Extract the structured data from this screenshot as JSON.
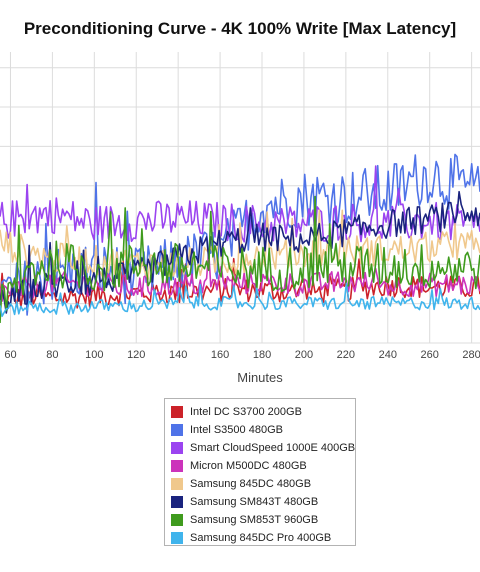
{
  "chart_data": {
    "type": "line",
    "title": "Preconditioning Curve - 4K 100% Write [Max Latency]",
    "xlabel": "Minutes",
    "ylabel": "",
    "xlim": [
      55,
      284
    ],
    "ylim": [
      0,
      11
    ],
    "x_ticks": [
      60,
      80,
      100,
      120,
      140,
      160,
      180,
      200,
      220,
      240,
      260,
      280
    ],
    "grid": true,
    "legend_position": "bottom-center",
    "series": [
      {
        "name": "Intel DC S3700 200GB",
        "color": "#cc2229",
        "points": [
          [
            55,
            1.5
          ],
          [
            70,
            1.8
          ],
          [
            80,
            1.7
          ],
          [
            100,
            1.8
          ],
          [
            120,
            1.9
          ],
          [
            140,
            1.9
          ],
          [
            160,
            2.0
          ],
          [
            180,
            2.0
          ],
          [
            200,
            1.9
          ],
          [
            220,
            2.0
          ],
          [
            240,
            2.2
          ],
          [
            260,
            2.1
          ],
          [
            280,
            2.1
          ]
        ]
      },
      {
        "name": "Intel S3500 480GB",
        "color": "#4f73e8",
        "points": [
          [
            55,
            1.8
          ],
          [
            70,
            2.2
          ],
          [
            80,
            2.6
          ],
          [
            100,
            2.8
          ],
          [
            120,
            2.5
          ],
          [
            140,
            3.0
          ],
          [
            160,
            3.4
          ],
          [
            180,
            5.2
          ],
          [
            200,
            5.5
          ],
          [
            220,
            5.5
          ],
          [
            240,
            5.7
          ],
          [
            260,
            6.4
          ],
          [
            280,
            5.8
          ]
        ]
      },
      {
        "name": "Smart CloudSpeed 1000E 400GB",
        "color": "#9b44f0",
        "points": [
          [
            55,
            4.6
          ],
          [
            70,
            4.8
          ],
          [
            80,
            4.9
          ],
          [
            100,
            4.5
          ],
          [
            120,
            4.6
          ],
          [
            140,
            4.7
          ],
          [
            160,
            4.6
          ],
          [
            180,
            4.5
          ],
          [
            200,
            4.5
          ],
          [
            220,
            4.6
          ],
          [
            240,
            4.5
          ],
          [
            260,
            4.6
          ],
          [
            280,
            4.4
          ]
        ]
      },
      {
        "name": "Micron M500DC 480GB",
        "color": "#cc33bb",
        "points": [
          [
            55,
            1.9
          ],
          [
            70,
            2.1
          ],
          [
            80,
            2.3
          ],
          [
            100,
            2.2
          ],
          [
            120,
            2.1
          ],
          [
            140,
            2.2
          ],
          [
            160,
            2.2
          ],
          [
            180,
            2.3
          ],
          [
            200,
            2.2
          ],
          [
            220,
            2.3
          ],
          [
            240,
            2.2
          ],
          [
            260,
            2.2
          ],
          [
            280,
            2.2
          ]
        ]
      },
      {
        "name": "Samsung 845DC 480GB",
        "color": "#f0c88c",
        "points": [
          [
            55,
            3.8
          ],
          [
            70,
            3.4
          ],
          [
            80,
            3.2
          ],
          [
            100,
            3.1
          ],
          [
            120,
            3.0
          ],
          [
            140,
            3.0
          ],
          [
            160,
            3.1
          ],
          [
            180,
            3.3
          ],
          [
            200,
            3.4
          ],
          [
            220,
            3.5
          ],
          [
            240,
            3.5
          ],
          [
            260,
            3.6
          ],
          [
            280,
            3.7
          ]
        ]
      },
      {
        "name": "Samsung SM843T 480GB",
        "color": "#1a237e",
        "points": [
          [
            55,
            1.5
          ],
          [
            70,
            2.0
          ],
          [
            80,
            2.2
          ],
          [
            100,
            2.3
          ],
          [
            120,
            2.6
          ],
          [
            140,
            3.2
          ],
          [
            160,
            3.8
          ],
          [
            180,
            4.0
          ],
          [
            200,
            3.9
          ],
          [
            220,
            4.2
          ],
          [
            240,
            4.5
          ],
          [
            260,
            4.7
          ],
          [
            280,
            4.9
          ]
        ]
      },
      {
        "name": "Samsung SM853T 960GB",
        "color": "#3f9b1e",
        "points": [
          [
            55,
            1.2
          ],
          [
            70,
            2.8
          ],
          [
            80,
            3.0
          ],
          [
            100,
            2.8
          ],
          [
            120,
            2.9
          ],
          [
            140,
            2.9
          ],
          [
            160,
            2.8
          ],
          [
            180,
            2.8
          ],
          [
            200,
            2.9
          ],
          [
            220,
            2.9
          ],
          [
            240,
            2.9
          ],
          [
            260,
            2.9
          ],
          [
            280,
            2.9
          ]
        ]
      },
      {
        "name": "Samsung 845DC Pro 400GB",
        "color": "#40b4ec",
        "points": [
          [
            55,
            1.2
          ],
          [
            70,
            1.4
          ],
          [
            80,
            1.3
          ],
          [
            100,
            1.4
          ],
          [
            120,
            1.4
          ],
          [
            140,
            1.5
          ],
          [
            160,
            1.5
          ],
          [
            180,
            1.5
          ],
          [
            200,
            1.5
          ],
          [
            220,
            1.5
          ],
          [
            240,
            1.5
          ],
          [
            260,
            1.5
          ],
          [
            280,
            1.5
          ]
        ]
      }
    ]
  }
}
